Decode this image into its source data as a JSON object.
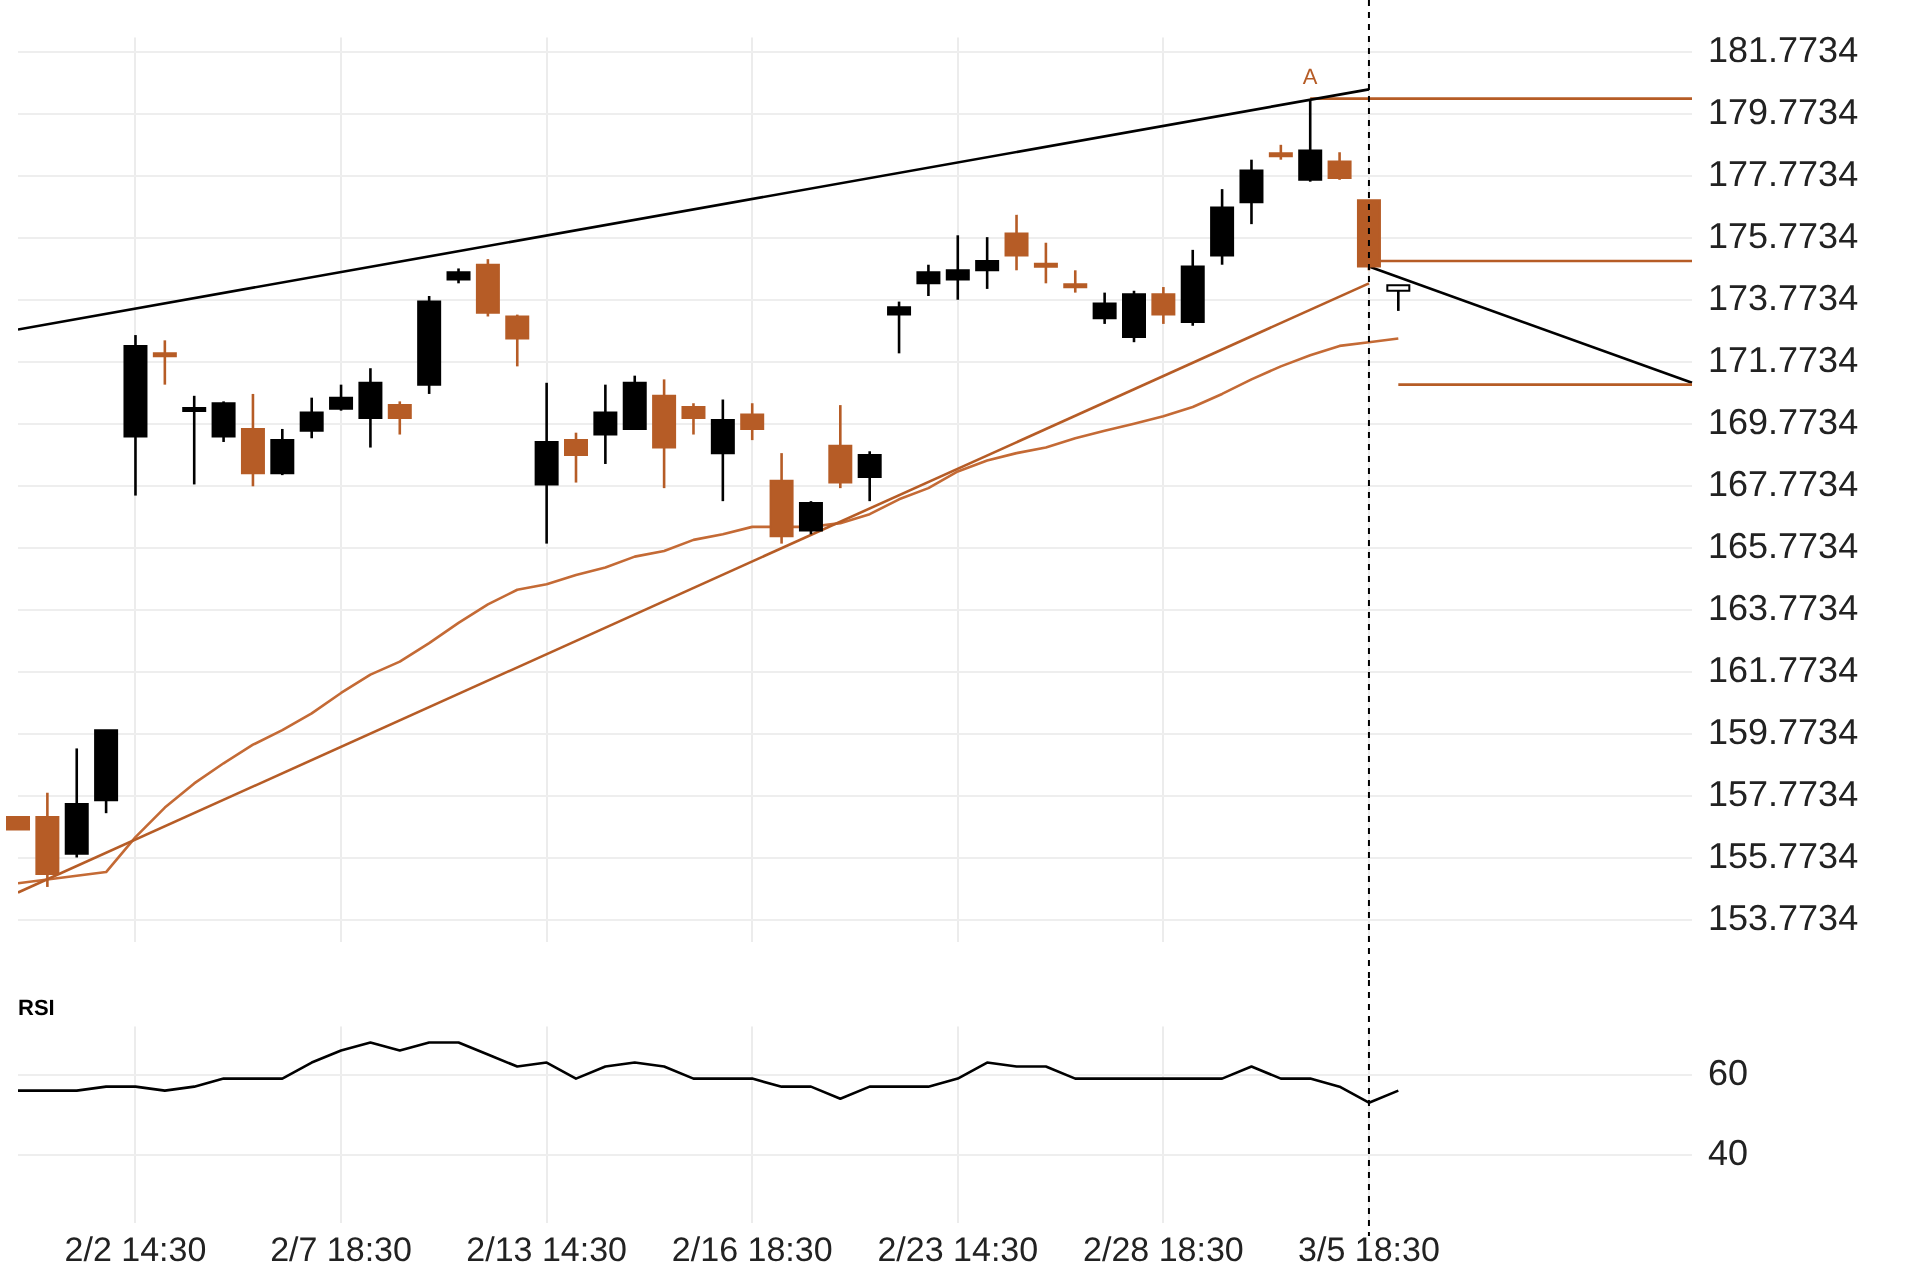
{
  "chart_data": [
    {
      "type": "candlestick",
      "categories": [
        null,
        null,
        null,
        null,
        "2/2 14:30",
        null,
        null,
        null,
        null,
        null,
        null,
        "2/7 18:30",
        null,
        null,
        null,
        null,
        null,
        null,
        "2/13 14:30",
        null,
        null,
        null,
        null,
        null,
        null,
        "2/16 18:30",
        null,
        null,
        null,
        null,
        null,
        null,
        "2/23 14:30",
        null,
        null,
        null,
        null,
        null,
        null,
        "2/28 18:30",
        null,
        null,
        null,
        null,
        null,
        null,
        "3/5 18:30",
        null,
        null,
        null,
        null,
        null,
        null,
        null,
        null,
        null,
        null,
        null
      ],
      "ohlc": [
        [
          157.1,
          157.1,
          156.69,
          156.69
        ],
        [
          157.1,
          157.88,
          154.84,
          155.26
        ],
        [
          155.91,
          159.31,
          155.79,
          157.52
        ],
        [
          157.64,
          159.9,
          157.22,
          159.9
        ],
        [
          169.38,
          172.65,
          167.47,
          172.3
        ],
        [
          172.06,
          172.48,
          171.05,
          172.0
        ],
        [
          170.27,
          170.69,
          167.83,
          170.3
        ],
        [
          169.38,
          170.51,
          169.2,
          170.45
        ],
        [
          169.62,
          170.75,
          167.77,
          168.19
        ],
        [
          168.19,
          169.62,
          168.13,
          169.26
        ],
        [
          169.56,
          170.63,
          169.32,
          170.15
        ],
        [
          170.27,
          171.05,
          170.21,
          170.63
        ],
        [
          169.97,
          171.58,
          169.02,
          171.11
        ],
        [
          170.39,
          170.51,
          169.44,
          169.97
        ],
        [
          171.05,
          173.91,
          170.75,
          173.73
        ],
        [
          174.44,
          174.8,
          174.32,
          174.68
        ],
        [
          174.92,
          175.1,
          173.25,
          173.37
        ],
        [
          173.25,
          173.31,
          171.64,
          172.54
        ],
        [
          167.83,
          171.11,
          165.92,
          169.2
        ],
        [
          169.26,
          169.5,
          167.89,
          168.78
        ],
        [
          169.44,
          171.05,
          168.49,
          170.15
        ],
        [
          169.62,
          171.34,
          169.62,
          171.11
        ],
        [
          170.69,
          171.22,
          167.71,
          169.02
        ],
        [
          170.33,
          170.45,
          169.44,
          169.97
        ],
        [
          168.84,
          170.57,
          167.29,
          169.91
        ],
        [
          170.09,
          170.45,
          169.26,
          169.62
        ],
        [
          167.95,
          168.84,
          165.92,
          166.16
        ],
        [
          166.34,
          167.29,
          166.22,
          167.23
        ],
        [
          169.08,
          170.39,
          167.71,
          167.89
        ],
        [
          168.07,
          168.9,
          167.29,
          168.78
        ],
        [
          173.31,
          173.73,
          172.06,
          173.55
        ],
        [
          174.32,
          174.92,
          173.91,
          174.68
        ],
        [
          174.44,
          175.87,
          173.79,
          174.74
        ],
        [
          174.74,
          175.81,
          174.14,
          175.04
        ],
        [
          175.93,
          176.53,
          174.74,
          175.22
        ],
        [
          174.95,
          175.63,
          174.32,
          174.92
        ],
        [
          174.29,
          174.74,
          174.02,
          174.26
        ],
        [
          173.19,
          174.02,
          173.01,
          173.67
        ],
        [
          172.59,
          174.08,
          172.42,
          173.97
        ],
        [
          173.97,
          174.2,
          173.01,
          173.31
        ],
        [
          173.07,
          175.4,
          172.95,
          174.86
        ],
        [
          175.22,
          177.36,
          174.92,
          176.77
        ],
        [
          176.94,
          178.31,
          176.23,
          177.96
        ],
        [
          178.52,
          178.79,
          178.31,
          178.49
        ],
        [
          177.66,
          180.22,
          177.6,
          178.61
        ],
        [
          178.25,
          178.55,
          177.66,
          177.72
        ],
        [
          177.0,
          177.0,
          174.74,
          174.86
        ],
        [
          174.26,
          174.26,
          173.43,
          174.08
        ],
        null,
        null,
        null,
        null,
        null,
        null,
        null,
        null,
        null,
        null
      ],
      "colors": [
        "#b65c26",
        "#b65c26",
        "#000000",
        "#000000",
        "#000000",
        "#b65c26",
        "#000000",
        "#000000",
        "#b65c26",
        "#000000",
        "#000000",
        "#000000",
        "#000000",
        "#b65c26",
        "#000000",
        "#000000",
        "#b65c26",
        "#b65c26",
        "#000000",
        "#b65c26",
        "#000000",
        "#000000",
        "#b65c26",
        "#b65c26",
        "#000000",
        "#b65c26",
        "#b65c26",
        "#000000",
        "#b65c26",
        "#000000",
        "#000000",
        "#000000",
        "#000000",
        "#000000",
        "#b65c26",
        "#b65c26",
        "#b65c26",
        "#000000",
        "#000000",
        "#b65c26",
        "#000000",
        "#000000",
        "#000000",
        "#b65c26",
        "#000000",
        "#b65c26",
        "#b65c26",
        "#ffffff",
        null,
        null,
        null,
        null,
        null,
        null,
        null,
        null,
        null,
        null
      ],
      "series": [
        {
          "type": "line",
          "color": "#000000",
          "values": [
            172.83,
            null,
            null,
            null,
            null,
            null,
            null,
            null,
            null,
            null,
            null,
            null,
            null,
            null,
            null,
            null,
            null,
            null,
            null,
            null,
            null,
            null,
            null,
            null,
            null,
            null,
            null,
            null,
            null,
            null,
            null,
            null,
            null,
            null,
            null,
            null,
            null,
            null,
            null,
            null,
            null,
            null,
            null,
            null,
            null,
            null,
            180.58,
            null,
            null,
            null,
            null,
            null,
            null,
            null,
            null,
            null,
            null,
            null
          ]
        },
        {
          "type": "line",
          "color": "#b65c26",
          "values": [
            154.66,
            null,
            null,
            null,
            null,
            null,
            null,
            null,
            null,
            null,
            null,
            null,
            null,
            null,
            null,
            null,
            null,
            null,
            null,
            null,
            null,
            null,
            null,
            null,
            null,
            null,
            null,
            null,
            null,
            null,
            null,
            null,
            null,
            null,
            null,
            null,
            null,
            null,
            null,
            null,
            null,
            null,
            null,
            null,
            null,
            null,
            174.32,
            null,
            null,
            null,
            null,
            null,
            null,
            null,
            null,
            null,
            null,
            null
          ]
        },
        {
          "type": "line",
          "color": "#c46a35",
          "values": [
            154.96,
            155.08,
            155.2,
            155.32,
            156.45,
            157.4,
            158.18,
            158.83,
            159.43,
            159.9,
            160.44,
            161.1,
            161.69,
            162.11,
            162.71,
            163.36,
            163.96,
            164.43,
            164.61,
            164.91,
            165.15,
            165.5,
            165.68,
            166.04,
            166.22,
            166.46,
            166.46,
            166.46,
            166.58,
            166.87,
            167.35,
            167.71,
            168.25,
            168.6,
            168.84,
            169.02,
            169.32,
            169.56,
            169.79,
            170.03,
            170.33,
            170.75,
            171.22,
            171.64,
            172.0,
            172.3,
            172.42,
            172.54,
            null,
            null,
            null,
            null,
            null,
            null,
            null,
            null,
            null,
            null
          ]
        },
        {
          "type": "line",
          "color": "#b65c26",
          "values": [
            null,
            null,
            null,
            null,
            null,
            null,
            null,
            null,
            null,
            null,
            null,
            null,
            null,
            null,
            null,
            null,
            null,
            null,
            null,
            null,
            null,
            null,
            null,
            null,
            null,
            null,
            null,
            null,
            null,
            null,
            null,
            null,
            null,
            null,
            null,
            null,
            null,
            null,
            null,
            null,
            null,
            null,
            null,
            null,
            180.28,
            null,
            null,
            null,
            null,
            null,
            null,
            null,
            null,
            null,
            null,
            null,
            null,
            180.28
          ]
        },
        {
          "type": "line",
          "color": "#b65c26",
          "values": [
            null,
            null,
            null,
            null,
            null,
            null,
            null,
            null,
            null,
            null,
            null,
            null,
            null,
            null,
            null,
            null,
            null,
            null,
            null,
            null,
            null,
            null,
            null,
            null,
            null,
            null,
            null,
            null,
            null,
            null,
            null,
            null,
            null,
            null,
            null,
            null,
            null,
            null,
            null,
            null,
            null,
            null,
            null,
            null,
            null,
            null,
            175.04,
            null,
            null,
            null,
            null,
            null,
            null,
            null,
            null,
            null,
            null,
            175.04
          ]
        },
        {
          "type": "line",
          "color": "#b65c26",
          "values": [
            null,
            null,
            null,
            null,
            null,
            null,
            null,
            null,
            null,
            null,
            null,
            null,
            null,
            null,
            null,
            null,
            null,
            null,
            null,
            null,
            null,
            null,
            null,
            null,
            null,
            null,
            null,
            null,
            null,
            null,
            null,
            null,
            null,
            null,
            null,
            null,
            null,
            null,
            null,
            null,
            null,
            null,
            null,
            null,
            null,
            null,
            null,
            171.05,
            null,
            null,
            null,
            null,
            null,
            null,
            null,
            null,
            null,
            171.05
          ]
        },
        {
          "type": "line",
          "color": "#000000",
          "values": [
            null,
            null,
            null,
            null,
            null,
            null,
            null,
            null,
            null,
            null,
            null,
            null,
            null,
            null,
            null,
            null,
            null,
            null,
            null,
            null,
            null,
            null,
            null,
            null,
            null,
            null,
            null,
            null,
            null,
            null,
            null,
            null,
            null,
            null,
            null,
            null,
            null,
            null,
            null,
            null,
            null,
            null,
            null,
            null,
            null,
            null,
            174.86,
            null,
            null,
            null,
            null,
            null,
            null,
            null,
            null,
            null,
            null,
            171.11
          ]
        }
      ],
      "ylim": [
        153.05,
        182.25
      ],
      "yticks": [
        153.7734,
        155.7734,
        157.7734,
        159.7734,
        161.7734,
        163.7734,
        165.7734,
        167.7734,
        169.7734,
        171.7734,
        173.7734,
        175.7734,
        177.7734,
        179.7734,
        181.7734
      ],
      "annotations": [
        {
          "text": "A",
          "y": 180.6
        }
      ],
      "ref_lines": [
        {
          "axis": "x",
          "value": "3/5 18:30",
          "line_style": "dashed",
          "color": "#000000"
        }
      ],
      "grid": true,
      "legend": false,
      "marker": "none",
      "tick_labels": "y"
    },
    {
      "type": "line",
      "title": "RSI",
      "categories": [
        null,
        null,
        null,
        null,
        "2/2 14:30",
        null,
        null,
        null,
        null,
        null,
        null,
        "2/7 18:30",
        null,
        null,
        null,
        null,
        null,
        null,
        "2/13 14:30",
        null,
        null,
        null,
        null,
        null,
        null,
        "2/16 18:30",
        null,
        null,
        null,
        null,
        null,
        null,
        "2/23 14:30",
        null,
        null,
        null,
        null,
        null,
        null,
        "2/28 18:30",
        null,
        null,
        null,
        null,
        null,
        null,
        "3/5 18:30",
        null,
        null,
        null,
        null,
        null,
        null,
        null,
        null,
        null,
        null,
        null
      ],
      "series": [
        {
          "color": "#000000",
          "values": [
            56,
            56,
            56,
            57,
            57,
            56,
            57,
            59,
            59,
            59,
            63,
            66,
            68,
            66,
            68,
            68,
            65,
            62,
            63,
            59,
            62,
            63,
            62,
            59,
            59,
            59,
            57,
            57,
            54,
            57,
            57,
            57,
            59,
            63,
            62,
            62,
            59,
            59,
            59,
            59,
            59,
            59,
            62,
            59,
            59,
            57,
            53,
            56,
            null,
            null,
            null,
            null,
            null,
            null,
            null,
            null,
            null,
            null
          ]
        }
      ],
      "ylim": [
        23,
        72
      ],
      "yticks": [
        60,
        40
      ],
      "ref_lines": [
        {
          "axis": "x",
          "value": "3/5 18:30",
          "line_style": "dashed",
          "color": "#000000"
        }
      ],
      "grid": true,
      "legend": false,
      "marker": "none"
    }
  ]
}
